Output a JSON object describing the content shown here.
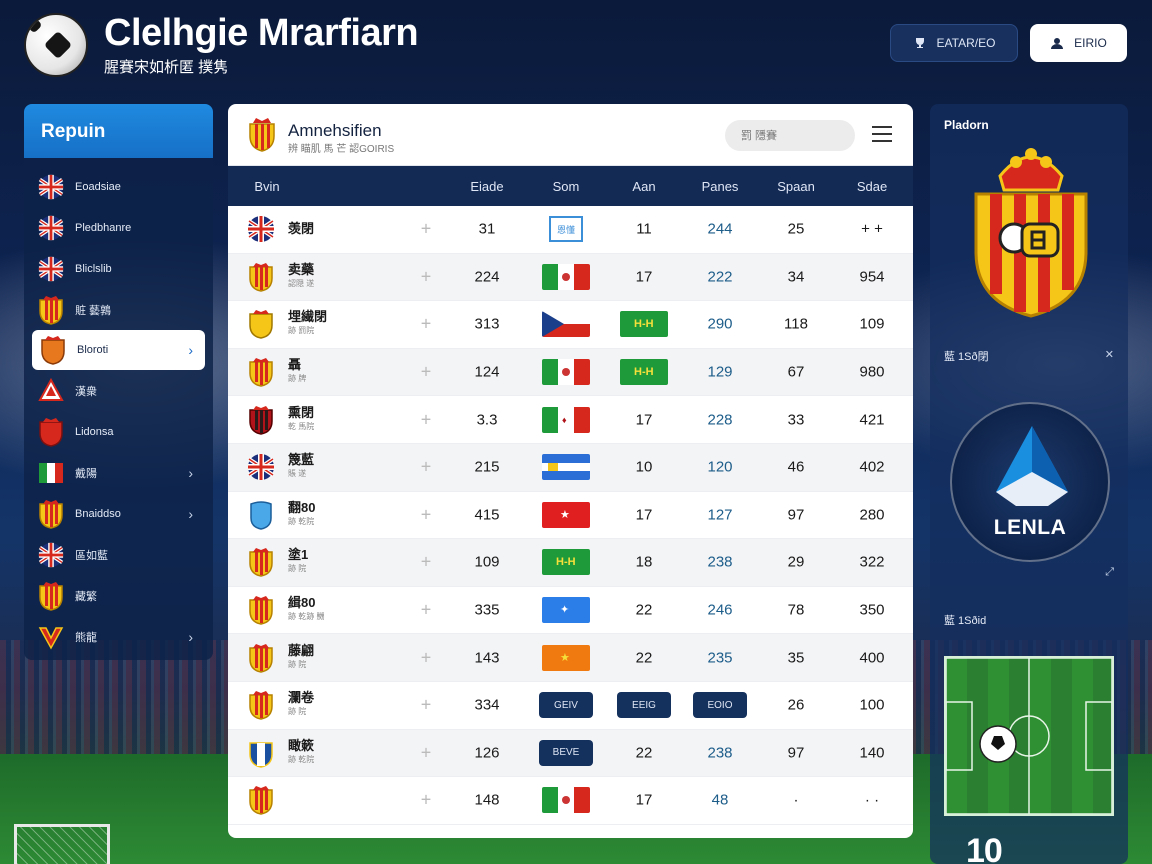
{
  "header": {
    "title": "Clelhgie Mrarfiarn",
    "subtitle": "腥賽宋如析匿 撲隽"
  },
  "top_buttons": [
    {
      "icon": "trophy-icon",
      "label": "EATAR/EO"
    },
    {
      "icon": "user-icon",
      "label": "EIRIO"
    }
  ],
  "sidebar": {
    "title": "Repuin",
    "items": [
      {
        "label": "Eoadsiae",
        "icon": "uk-flag",
        "active": false,
        "chevron": false
      },
      {
        "label": "Pledbhanre",
        "icon": "uk-flag",
        "active": false,
        "chevron": false
      },
      {
        "label": "Bliclslib",
        "icon": "uk-flag",
        "active": false,
        "chevron": false
      },
      {
        "label": "賍 藝鶉",
        "icon": "spain-crest",
        "active": false,
        "chevron": false
      },
      {
        "label": "Bloroti",
        "icon": "orange-crest",
        "active": true,
        "chevron": true
      },
      {
        "label": "漢衆",
        "icon": "red-diamond-crest",
        "active": false,
        "chevron": false
      },
      {
        "label": "Lidonsa",
        "icon": "red-shield-crest",
        "active": false,
        "chevron": false
      },
      {
        "label": "戴陽",
        "icon": "italy-flag",
        "active": false,
        "chevron": true
      },
      {
        "label": "Bnaiddso",
        "icon": "spain-crest",
        "active": false,
        "chevron": true
      },
      {
        "label": "區如藍",
        "icon": "uk-flag",
        "active": false,
        "chevron": false
      },
      {
        "label": "藏繁",
        "icon": "spain-crest",
        "active": false,
        "chevron": false
      },
      {
        "label": "熊龍",
        "icon": "v-crest",
        "active": false,
        "chevron": true
      }
    ]
  },
  "main": {
    "title": "Amnehsifien",
    "subtitle": "辨 瞄肌  馬 芒 認GOIRIS",
    "search_placeholder": "罰 隱賽",
    "columns": [
      "Bvin",
      "Eiade",
      "Som",
      "Aan",
      "Panes",
      "Spaan",
      "Sdae"
    ],
    "rows": [
      {
        "crest": "uk-flag",
        "name": "羡閉",
        "sub": "",
        "c1": "31",
        "c2": {
          "type": "tag",
          "text": "恩懂"
        },
        "c3": "11",
        "c4": "244",
        "c5": "25",
        "c6": "+ +"
      },
      {
        "crest": "spain-crest",
        "name": "卖藥",
        "sub": "認隠 遂",
        "c1": "224",
        "c2": {
          "type": "flag",
          "flag": "italy"
        },
        "c3": "17",
        "c4": "222",
        "c5": "34",
        "c6": "954"
      },
      {
        "crest": "yellow-crest",
        "name": "埋繊閉",
        "sub": "跡 罰院",
        "c1": "313",
        "c2": {
          "type": "flag",
          "flag": "czech"
        },
        "c3": {
          "type": "flag",
          "flag": "green-hh"
        },
        "c4": "290",
        "c5": "118",
        "c6": "109"
      },
      {
        "crest": "spain-crest",
        "name": "聶",
        "sub": "跡 牌",
        "c1": "124",
        "c2": {
          "type": "flag",
          "flag": "italy"
        },
        "c3": {
          "type": "flag",
          "flag": "green-hh"
        },
        "c4": "129",
        "c5": "67",
        "c6": "980"
      },
      {
        "crest": "red-crest",
        "name": "熏閉",
        "sub": "乾 馬院",
        "c1": "3.3",
        "c2": {
          "type": "flag",
          "flag": "italy-red"
        },
        "c3": "17",
        "c4": "228",
        "c5": "33",
        "c6": "421"
      },
      {
        "crest": "uk-flag",
        "name": "篾藍",
        "sub": "賬 遂",
        "c1": "215",
        "c2": {
          "type": "flag",
          "flag": "blue-yellow"
        },
        "c3": "10",
        "c4": "120",
        "c5": "46",
        "c6": "402"
      },
      {
        "crest": "blue-crest",
        "name": "翻80",
        "sub": "跡 乾院",
        "c1": "415",
        "c2": {
          "type": "flag",
          "flag": "red-star"
        },
        "c3": "17",
        "c4": "127",
        "c5": "97",
        "c6": "280"
      },
      {
        "crest": "spain-crest",
        "name": "塗1",
        "sub": "跡 院",
        "c1": "109",
        "c2": {
          "type": "flag",
          "flag": "green-hh"
        },
        "c3": "18",
        "c4": "238",
        "c5": "29",
        "c6": "322"
      },
      {
        "crest": "spain-crest",
        "name": "緝80",
        "sub": "跡 乾跡 嬲",
        "c1": "335",
        "c2": {
          "type": "flag",
          "flag": "blue-star"
        },
        "c3": "22",
        "c4": "246",
        "c5": "78",
        "c6": "350"
      },
      {
        "crest": "spain-crest",
        "name": "藤翩",
        "sub": "跡 院",
        "c1": "143",
        "c2": {
          "type": "flag",
          "flag": "orange-star"
        },
        "c3": "22",
        "c4": "235",
        "c5": "35",
        "c6": "400"
      },
      {
        "crest": "spain-crest",
        "name": "瀾卷",
        "sub": "跡 院",
        "c1": "334",
        "c2": {
          "type": "pill",
          "text": "GEIV"
        },
        "c3": {
          "type": "pill",
          "text": "EEIG"
        },
        "c4": {
          "type": "pill",
          "text": "EOIO"
        },
        "c5": "26",
        "c6": "100"
      },
      {
        "crest": "inter-crest",
        "name": "瞰簌",
        "sub": "跡 乾院",
        "c1": "126",
        "c2": {
          "type": "pill",
          "text": "BEVE"
        },
        "c3": "22",
        "c4": "238",
        "c5": "97",
        "c6": "140"
      },
      {
        "crest": "spain-crest",
        "name": "",
        "sub": "",
        "c1": "148",
        "c2": {
          "type": "flag",
          "flag": "italy"
        },
        "c3": "17",
        "c4": "48",
        "c5": "·",
        "c6": "· ·"
      }
    ]
  },
  "right_panel": {
    "title": "Pladorn",
    "section1": "藍   1Sð閉",
    "section2": "藍   1Sðid",
    "league_name": "LENLA",
    "bottom_text": "10"
  },
  "colors": {
    "accent_blue": "#1f8ae0",
    "navy": "#132a55",
    "stat_blue": "#1d5d8a"
  }
}
